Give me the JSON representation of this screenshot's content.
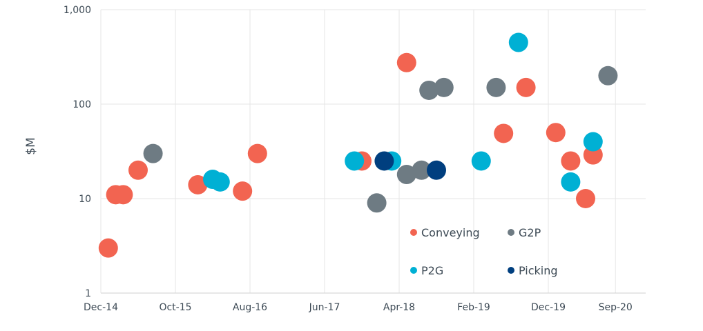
{
  "chart_data": {
    "type": "scatter",
    "title": "",
    "xlabel": "",
    "ylabel": "$M",
    "y_scale": "log",
    "ylim": [
      1,
      1000
    ],
    "y_ticks": [
      "1",
      "10",
      "100",
      "1,000"
    ],
    "y_tick_values": [
      1,
      10,
      100,
      1000
    ],
    "x_ticks": [
      "Dec-14",
      "Oct-15",
      "Aug-16",
      "Jun-17",
      "Apr-18",
      "Feb-19",
      "Dec-19",
      "Sep-20"
    ],
    "x_tick_values": [
      "2014-12",
      "2015-10",
      "2016-08",
      "2017-06",
      "2018-04",
      "2019-02",
      "2019-12",
      "2020-09"
    ],
    "xlim": [
      "2014-12",
      "2020-12"
    ],
    "grid": true,
    "legend_placement": "bottom-right inside",
    "series": [
      {
        "name": "Conveying",
        "color": "#F26451",
        "points": [
          [
            "2015-01",
            3
          ],
          [
            "2015-02",
            11
          ],
          [
            "2015-03",
            11
          ],
          [
            "2015-05",
            20
          ],
          [
            "2016-01",
            14
          ],
          [
            "2016-07",
            12
          ],
          [
            "2016-09",
            30
          ],
          [
            "2017-11",
            25
          ],
          [
            "2018-05",
            275
          ],
          [
            "2019-06",
            49
          ],
          [
            "2019-09",
            150
          ],
          [
            "2020-01",
            50
          ],
          [
            "2020-03",
            25
          ],
          [
            "2020-05",
            10
          ],
          [
            "2020-06",
            29
          ]
        ]
      },
      {
        "name": "G2P",
        "color": "#6E7B83",
        "points": [
          [
            "2015-07",
            30
          ],
          [
            "2018-01",
            9
          ],
          [
            "2018-05",
            18
          ],
          [
            "2018-07",
            20
          ],
          [
            "2018-08",
            140
          ],
          [
            "2018-10",
            150
          ],
          [
            "2019-05",
            150
          ],
          [
            "2020-08",
            200
          ]
        ]
      },
      {
        "name": "P2G",
        "color": "#00B0D4",
        "points": [
          [
            "2016-03",
            16
          ],
          [
            "2016-04",
            15
          ],
          [
            "2017-10",
            25
          ],
          [
            "2018-03",
            25
          ],
          [
            "2019-03",
            25
          ],
          [
            "2019-08",
            450
          ],
          [
            "2020-03",
            15
          ],
          [
            "2020-06",
            40
          ]
        ]
      },
      {
        "name": "Picking",
        "color": "#003F7F",
        "points": [
          [
            "2018-02",
            25
          ],
          [
            "2018-09",
            20
          ]
        ]
      }
    ]
  }
}
